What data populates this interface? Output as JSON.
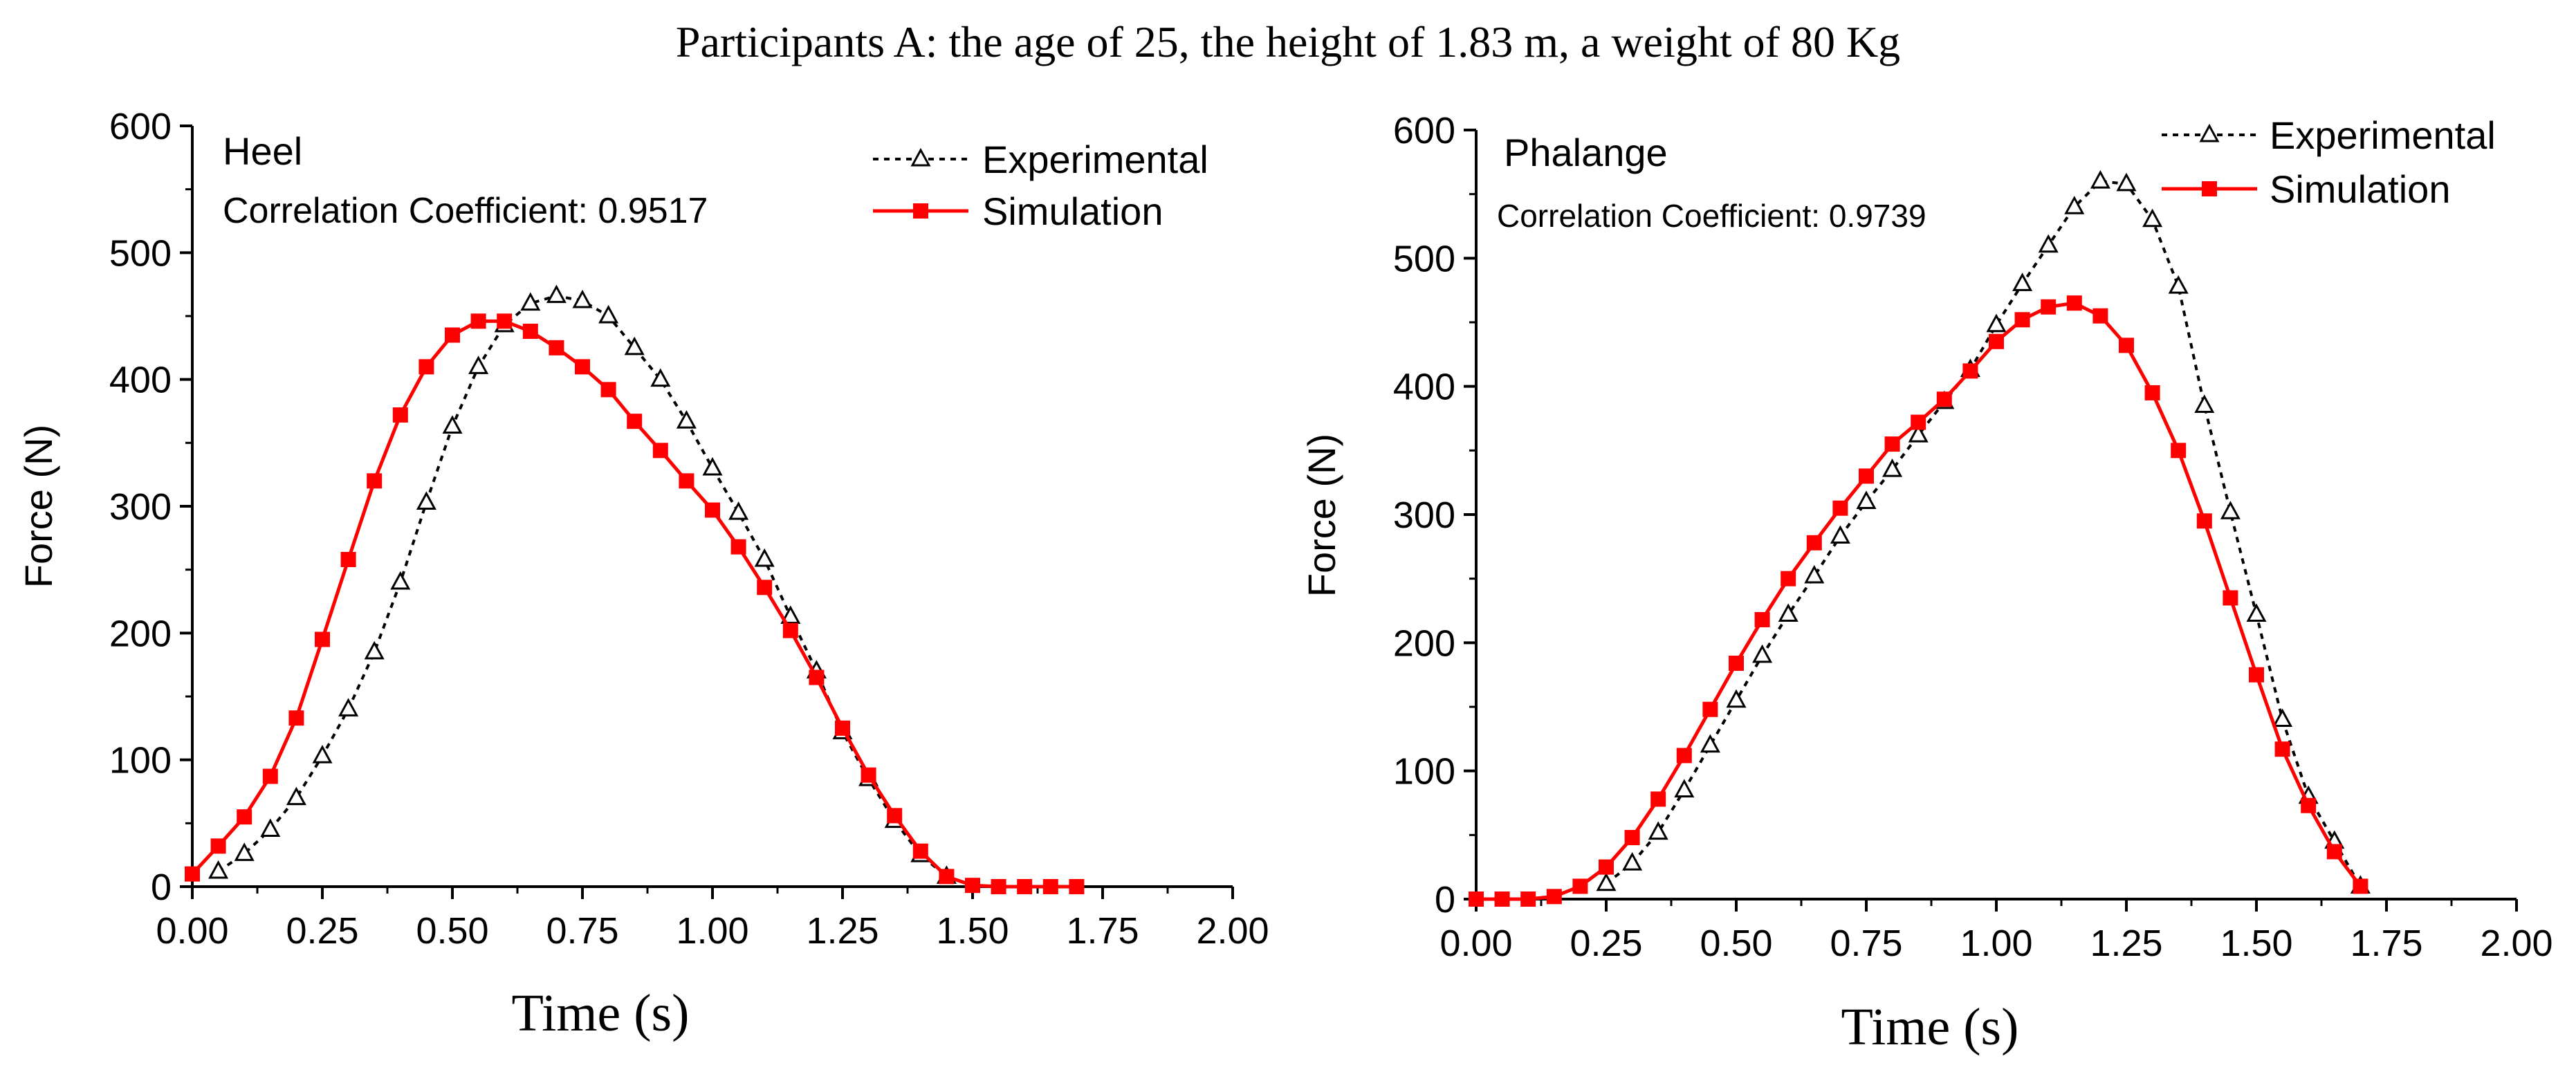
{
  "figure_title": "Participants A: the age of 25, the height of 1.83 m, a weight of 80 Kg",
  "colors": {
    "experimental": "#000000",
    "simulation": "#ff0000",
    "marker_fill_experimental": "#ffffff"
  },
  "chart_data": [
    {
      "type": "line",
      "title": "Heel",
      "annotation": "Correlation Coefficient: 0.9517",
      "xlabel": "Time (s)",
      "ylabel": "Force (N)",
      "xlim": [
        0,
        2
      ],
      "ylim": [
        0,
        600
      ],
      "x_ticks": [
        "0.00",
        "0.25",
        "0.50",
        "0.75",
        "1.00",
        "1.25",
        "1.50",
        "1.75",
        "2.00"
      ],
      "y_ticks": [
        "0",
        "100",
        "200",
        "300",
        "400",
        "500",
        "600"
      ],
      "legend": {
        "position": "top-right",
        "entries": [
          "Experimental",
          "Simulation"
        ]
      },
      "series": [
        {
          "name": "Experimental",
          "style": "dotted-triangle",
          "x": [
            0.05,
            0.1,
            0.15,
            0.2,
            0.25,
            0.3,
            0.35,
            0.4,
            0.45,
            0.5,
            0.55,
            0.6,
            0.65,
            0.7,
            0.75,
            0.8,
            0.85,
            0.9,
            0.95,
            1.0,
            1.05,
            1.1,
            1.15,
            1.2,
            1.25,
            1.3,
            1.35,
            1.4,
            1.45
          ],
          "y": [
            12,
            26,
            45,
            70,
            103,
            140,
            185,
            240,
            303,
            363,
            410,
            443,
            460,
            466,
            462,
            450,
            425,
            400,
            367,
            330,
            295,
            258,
            213,
            170,
            122,
            85,
            52,
            25,
            8
          ]
        },
        {
          "name": "Simulation",
          "style": "solid-square",
          "x": [
            0.0,
            0.05,
            0.1,
            0.15,
            0.2,
            0.25,
            0.3,
            0.35,
            0.4,
            0.45,
            0.5,
            0.55,
            0.6,
            0.65,
            0.7,
            0.75,
            0.8,
            0.85,
            0.9,
            0.95,
            1.0,
            1.05,
            1.1,
            1.15,
            1.2,
            1.25,
            1.3,
            1.35,
            1.4,
            1.45,
            1.5,
            1.55,
            1.6,
            1.65,
            1.7
          ],
          "y": [
            10,
            32,
            55,
            87,
            133,
            195,
            258,
            320,
            372,
            410,
            435,
            446,
            446,
            438,
            425,
            410,
            392,
            367,
            344,
            320,
            297,
            268,
            236,
            202,
            165,
            125,
            88,
            56,
            28,
            8,
            1,
            0,
            0,
            0,
            0
          ]
        }
      ]
    },
    {
      "type": "line",
      "title": "Phalange",
      "annotation": "Correlation Coefficient: 0.9739",
      "xlabel": "Time (s)",
      "ylabel": "Force (N)",
      "xlim": [
        0,
        2
      ],
      "ylim": [
        0,
        600
      ],
      "x_ticks": [
        "0.00",
        "0.25",
        "0.50",
        "0.75",
        "1.00",
        "1.25",
        "1.50",
        "1.75",
        "2.00"
      ],
      "y_ticks": [
        "0",
        "100",
        "200",
        "300",
        "400",
        "500",
        "600"
      ],
      "legend": {
        "position": "top-right",
        "entries": [
          "Experimental",
          "Simulation"
        ]
      },
      "series": [
        {
          "name": "Experimental",
          "style": "dotted-triangle",
          "x": [
            0.25,
            0.3,
            0.35,
            0.4,
            0.45,
            0.5,
            0.55,
            0.6,
            0.65,
            0.7,
            0.75,
            0.8,
            0.85,
            0.9,
            0.95,
            1.0,
            1.05,
            1.1,
            1.15,
            1.2,
            1.25,
            1.3,
            1.35,
            1.4,
            1.45,
            1.5,
            1.55,
            1.6,
            1.65,
            1.7
          ],
          "y": [
            12,
            28,
            52,
            85,
            120,
            155,
            190,
            222,
            252,
            283,
            310,
            335,
            362,
            388,
            413,
            448,
            480,
            510,
            540,
            560,
            558,
            530,
            478,
            385,
            302,
            222,
            140,
            80,
            45,
            10
          ]
        },
        {
          "name": "Simulation",
          "style": "solid-square",
          "x": [
            0.0,
            0.05,
            0.1,
            0.15,
            0.2,
            0.25,
            0.3,
            0.35,
            0.4,
            0.45,
            0.5,
            0.55,
            0.6,
            0.65,
            0.7,
            0.75,
            0.8,
            0.85,
            0.9,
            0.95,
            1.0,
            1.05,
            1.1,
            1.15,
            1.2,
            1.25,
            1.3,
            1.35,
            1.4,
            1.45,
            1.5,
            1.55,
            1.6,
            1.65,
            1.7
          ],
          "y": [
            0,
            0,
            0,
            2,
            10,
            25,
            48,
            78,
            112,
            148,
            184,
            218,
            250,
            278,
            305,
            330,
            355,
            372,
            390,
            412,
            435,
            452,
            462,
            465,
            455,
            432,
            395,
            350,
            295,
            235,
            175,
            117,
            73,
            37,
            10
          ]
        }
      ]
    }
  ]
}
